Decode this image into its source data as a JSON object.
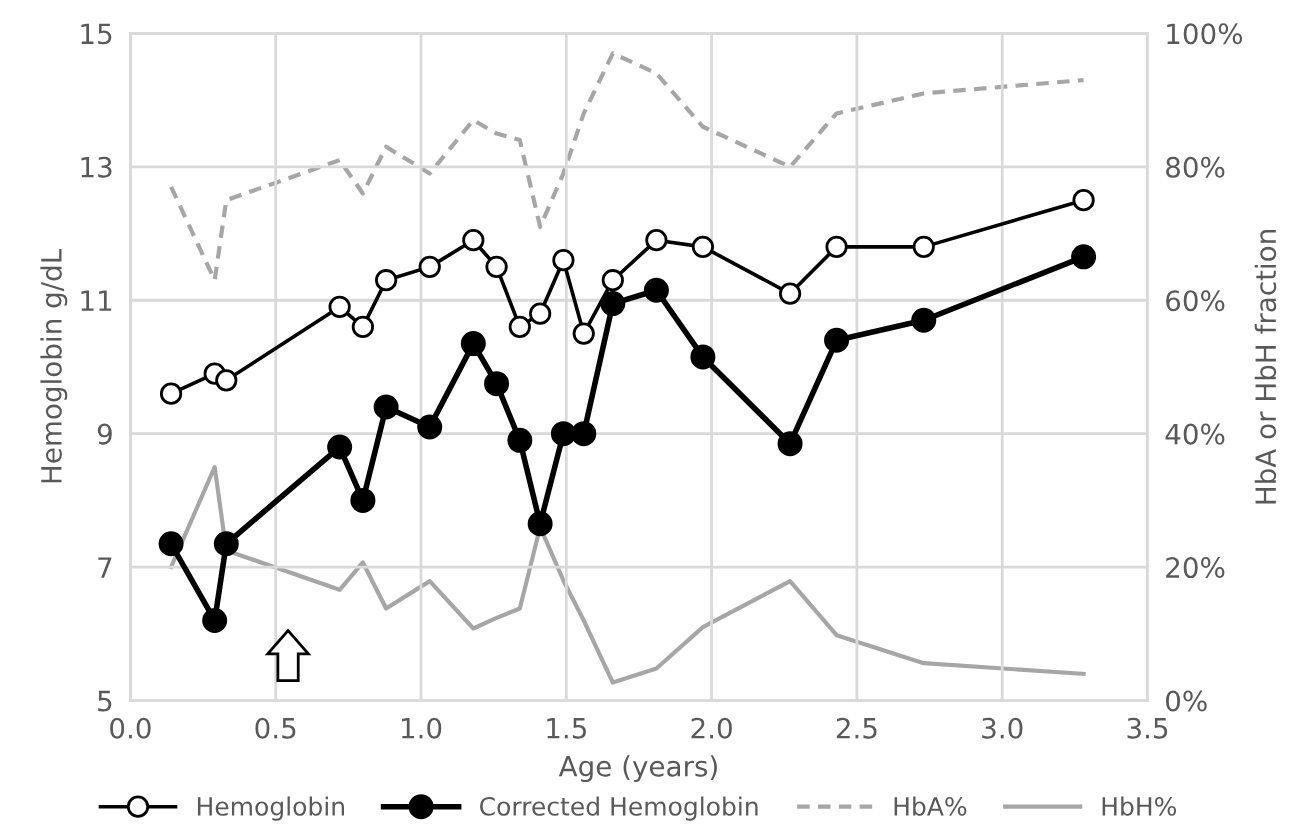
{
  "chart_data": {
    "type": "line",
    "xlabel": "Age (years)",
    "ylabel": "Hemoglobin g/dL",
    "y2label": "HbA or HbH fraction",
    "x": [
      0.14,
      0.29,
      0.33,
      0.72,
      0.8,
      0.88,
      1.03,
      1.18,
      1.26,
      1.34,
      1.41,
      1.49,
      1.56,
      1.66,
      1.81,
      1.97,
      2.27,
      2.43,
      2.73,
      3.28
    ],
    "series": [
      {
        "name": "Hemoglobin",
        "color": "#000000",
        "marker": "circle",
        "values": [
          9.6,
          9.9,
          9.8,
          10.9,
          10.6,
          11.3,
          11.5,
          11.9,
          11.5,
          10.6,
          10.8,
          11.6,
          10.5,
          11.3,
          11.9,
          11.8,
          11.1,
          11.8,
          11.8,
          12.5
        ]
      },
      {
        "name": "Corrected Hemoglobin",
        "color": "#000000",
        "marker": "circle",
        "values": [
          7.35,
          6.2,
          7.35,
          8.8,
          8.0,
          9.4,
          9.1,
          10.35,
          9.75,
          8.9,
          7.65,
          9.0,
          9.0,
          10.95,
          11.15,
          10.15,
          8.85,
          10.4,
          10.7,
          11.65
        ]
      },
      {
        "name": "HbA%",
        "color": "#a6a6a6",
        "axis": "y2",
        "line_style": "dashed",
        "values": [
          77,
          63,
          75,
          81,
          76,
          83,
          79,
          87,
          85,
          84,
          71,
          79,
          88,
          97,
          94,
          86,
          80,
          88,
          91,
          93
        ]
      },
      {
        "name": "HbH%",
        "color": "#a6a6a6",
        "axis": "y2",
        "values": [
          20,
          35,
          22.5,
          16.6,
          20.7,
          13.8,
          17.9,
          10.8,
          12.4,
          13.8,
          26,
          18,
          12,
          2.7,
          4.8,
          11,
          17.9,
          9.8,
          5.6,
          4
        ]
      }
    ],
    "xlim": [
      0,
      3.5
    ],
    "xticks": [
      {
        "value": 0,
        "label": "0.0"
      },
      {
        "value": 0.5,
        "label": "0.5"
      },
      {
        "value": 1,
        "label": "1.0"
      },
      {
        "value": 1.5,
        "label": "1.5"
      },
      {
        "value": 2,
        "label": "2.0"
      },
      {
        "value": 2.5,
        "label": "2.5"
      },
      {
        "value": 3,
        "label": "3.0"
      },
      {
        "value": 3.5,
        "label": "3.5"
      }
    ],
    "ylim": [
      5,
      15
    ],
    "yticks": [
      5,
      7,
      9,
      11,
      13,
      15
    ],
    "y2lim": [
      0,
      100
    ],
    "y2ticks": [
      {
        "value": 0,
        "label": "0%"
      },
      {
        "value": 20,
        "label": "20%"
      },
      {
        "value": 40,
        "label": "40%"
      },
      {
        "value": 60,
        "label": "60%"
      },
      {
        "value": 80,
        "label": "80%"
      },
      {
        "value": 100,
        "label": "100%"
      }
    ],
    "grid": true,
    "legend": "bottom"
  }
}
